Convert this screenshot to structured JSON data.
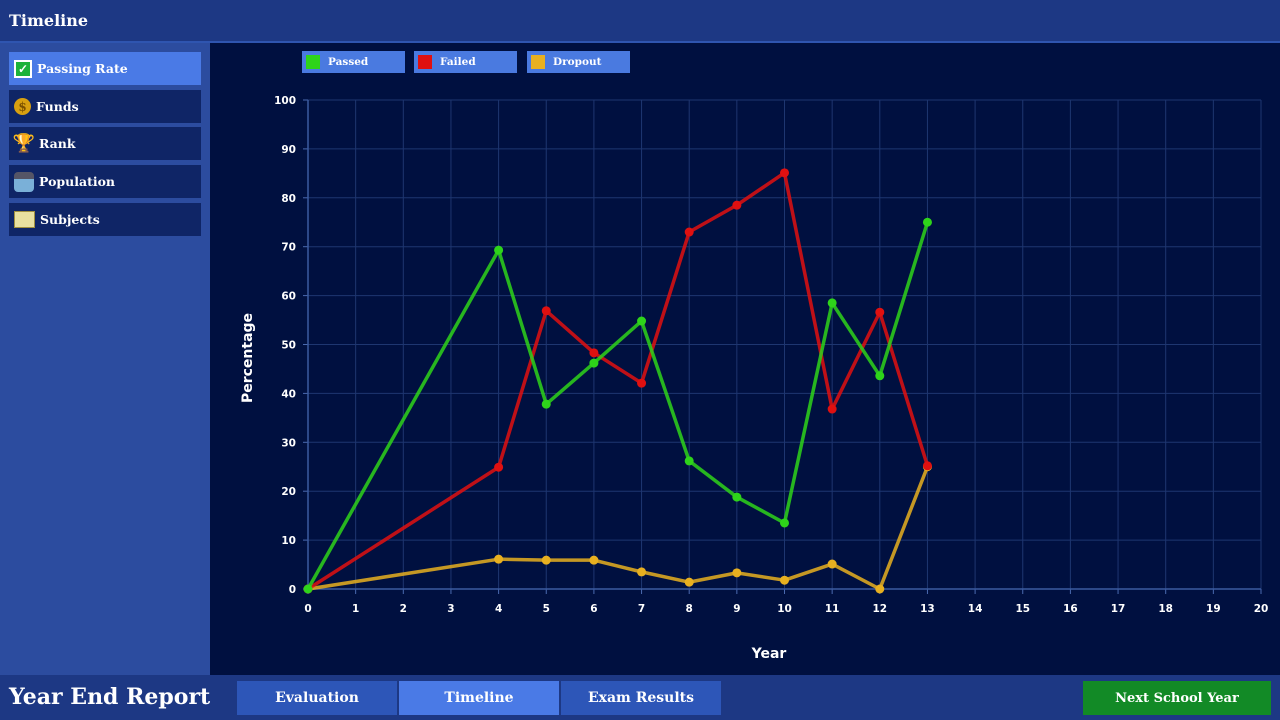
{
  "header": {
    "title": "Timeline"
  },
  "sidebar": {
    "items": [
      {
        "label": "Passing Rate",
        "icon": "checkbox-icon",
        "active": true
      },
      {
        "label": "Funds",
        "icon": "coin-icon"
      },
      {
        "label": "Rank",
        "icon": "trophy-icon"
      },
      {
        "label": "Population",
        "icon": "student-icon"
      },
      {
        "label": "Subjects",
        "icon": "book-icon"
      }
    ]
  },
  "footer": {
    "title": "Year End Report",
    "tabs": [
      {
        "label": "Evaluation"
      },
      {
        "label": "Timeline",
        "active": true
      },
      {
        "label": "Exam Results"
      }
    ],
    "next_label": "Next School Year"
  },
  "chart_data": {
    "type": "line",
    "xlabel": "Year",
    "ylabel": "Percentage",
    "xlim": [
      0,
      20
    ],
    "ylim": [
      0,
      100
    ],
    "xticks": [
      "0",
      "1",
      "2",
      "3",
      "4",
      "5",
      "6",
      "7",
      "8",
      "9",
      "10",
      "11",
      "12",
      "13",
      "14",
      "15",
      "16",
      "17",
      "18",
      "19",
      "20"
    ],
    "yticks": [
      "0",
      "10",
      "20",
      "30",
      "40",
      "50",
      "60",
      "70",
      "80",
      "90",
      "100"
    ],
    "grid": true,
    "legend_position": "top-left",
    "x": [
      0,
      4,
      5,
      6,
      7,
      8,
      9,
      10,
      11,
      12,
      13
    ],
    "series": [
      {
        "name": "Passed",
        "color": "#2ed41a",
        "values": [
          0,
          69.3,
          37.8,
          46.2,
          54.8,
          26.2,
          18.8,
          13.5,
          58.5,
          43.6,
          75
        ]
      },
      {
        "name": "Failed",
        "color": "#e01010",
        "values": [
          0,
          24.9,
          56.9,
          48.3,
          42.1,
          73,
          78.5,
          85.1,
          36.8,
          56.6,
          25.2
        ]
      },
      {
        "name": "Dropout",
        "color": "#e8b020",
        "values": [
          0,
          6.1,
          5.9,
          5.9,
          3.5,
          1.4,
          3.3,
          1.8,
          5.1,
          0,
          25
        ]
      }
    ]
  }
}
